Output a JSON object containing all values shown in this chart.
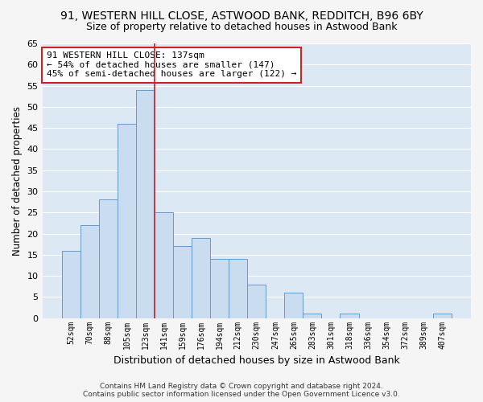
{
  "title1": "91, WESTERN HILL CLOSE, ASTWOOD BANK, REDDITCH, B96 6BY",
  "title2": "Size of property relative to detached houses in Astwood Bank",
  "xlabel": "Distribution of detached houses by size in Astwood Bank",
  "ylabel": "Number of detached properties",
  "categories": [
    "52sqm",
    "70sqm",
    "88sqm",
    "105sqm",
    "123sqm",
    "141sqm",
    "159sqm",
    "176sqm",
    "194sqm",
    "212sqm",
    "230sqm",
    "247sqm",
    "265sqm",
    "283sqm",
    "301sqm",
    "318sqm",
    "336sqm",
    "354sqm",
    "372sqm",
    "389sqm",
    "407sqm"
  ],
  "values": [
    16,
    22,
    28,
    46,
    54,
    25,
    17,
    19,
    14,
    14,
    8,
    0,
    6,
    1,
    0,
    1,
    0,
    0,
    0,
    0,
    1
  ],
  "bar_color": "#c9dcf0",
  "bar_edge_color": "#6699cc",
  "background_color": "#dde8f5",
  "grid_color": "#ffffff",
  "vline_color": "#cc2222",
  "annotation_text": "91 WESTERN HILL CLOSE: 137sqm\n← 54% of detached houses are smaller (147)\n45% of semi-detached houses are larger (122) →",
  "annotation_box_color": "#ffffff",
  "annotation_box_edge": "#cc2222",
  "ylim": [
    0,
    65
  ],
  "yticks": [
    0,
    5,
    10,
    15,
    20,
    25,
    30,
    35,
    40,
    45,
    50,
    55,
    60,
    65
  ],
  "footer1": "Contains HM Land Registry data © Crown copyright and database right 2024.",
  "footer2": "Contains public sector information licensed under the Open Government Licence v3.0.",
  "vline_bar_index": 5,
  "fig_bg": "#f5f5f5"
}
